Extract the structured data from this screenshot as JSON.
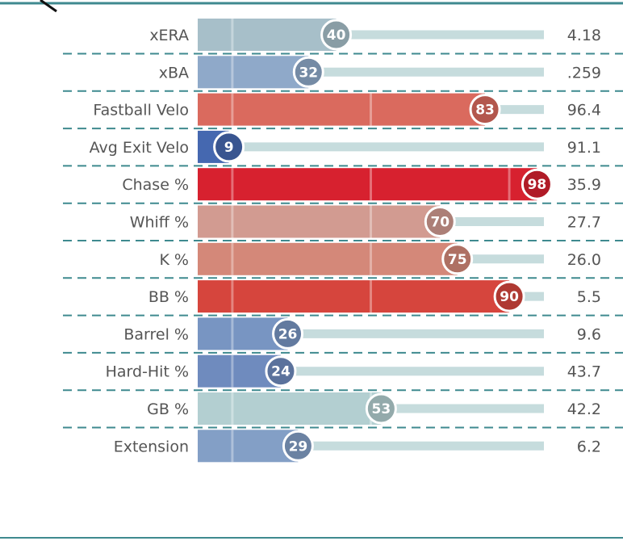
{
  "chart_data": {
    "type": "bar",
    "orientation": "horizontal",
    "title": "",
    "xlabel": "",
    "ylabel": "",
    "xlim": [
      0,
      100
    ],
    "grid": true,
    "categories": [
      "xERA",
      "xBA",
      "Fastball Velo",
      "Avg Exit Velo",
      "Chase %",
      "Whiff %",
      "K %",
      "BB %",
      "Barrel %",
      "Hard-Hit %",
      "GB %",
      "Extension"
    ],
    "values": [
      40,
      32,
      83,
      9,
      98,
      70,
      75,
      90,
      26,
      24,
      53,
      29
    ],
    "stat_values": [
      "4.18",
      ".259",
      "96.4",
      "91.1",
      "35.9",
      "27.7",
      "26.0",
      "5.5",
      "9.6",
      "43.7",
      "42.2",
      "6.2"
    ],
    "colors": [
      "#a7bfc9",
      "#8fa9c9",
      "#da6a5e",
      "#4568b0",
      "#d7212f",
      "#d29b91",
      "#d48879",
      "#d6453d",
      "#7895c2",
      "#6f8bbe",
      "#b3cfd1",
      "#839fc6"
    ]
  }
}
